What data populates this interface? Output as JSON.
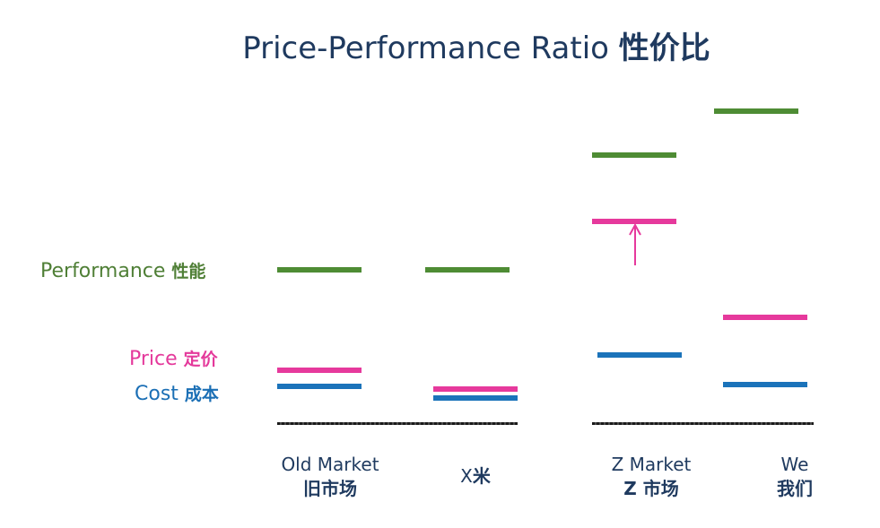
{
  "title": {
    "en": "Price-Performance Ratio",
    "cn": "性价比"
  },
  "legend": {
    "performance": {
      "en": "Performance",
      "cn": "性能",
      "color": "#4e8c34"
    },
    "price": {
      "en": "Price",
      "cn": "定价",
      "color": "#e6399c"
    },
    "cost": {
      "en": "Cost",
      "cn": "成本",
      "color": "#1b73ba"
    }
  },
  "columns": [
    {
      "name_en": "Old Market",
      "name_cn": "旧市场"
    },
    {
      "name_en": "X",
      "name_cn": "米"
    },
    {
      "name_en": "Z Market",
      "name_cn": "Z 市场"
    },
    {
      "name_en": "We",
      "name_cn": "我们"
    }
  ],
  "arrow": {
    "label": "",
    "color": "#e6399c",
    "direction": "up"
  }
}
